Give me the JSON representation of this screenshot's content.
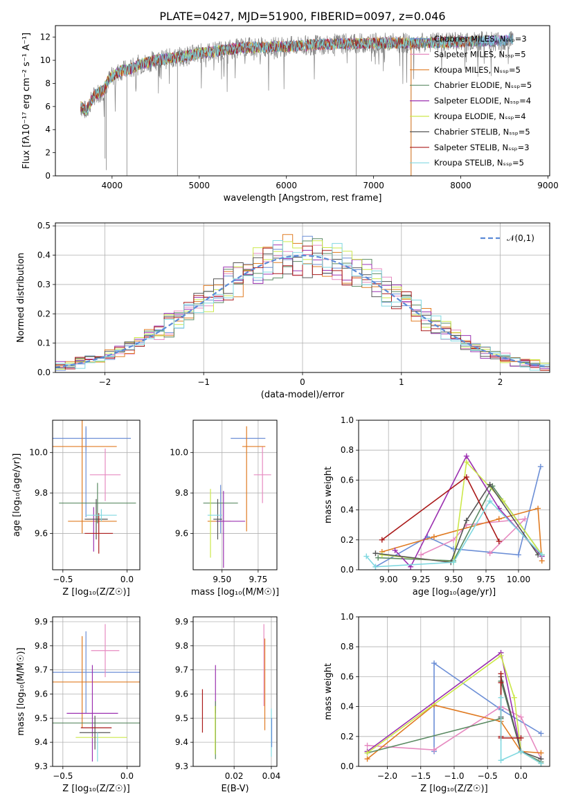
{
  "figure_title": "PLATE=0427, MJD=51900, FIBERID=0097, z=0.046",
  "colors": {
    "Chabrier MILES": "#6b8ed6",
    "Salpeter MILES": "#e68ac0",
    "Kroupa MILES": "#e07b22",
    "Chabrier ELODIE": "#5a8a62",
    "Salpeter ELODIE": "#9b30b0",
    "Kroupa ELODIE": "#cce84a",
    "Chabrier STELIB": "#555555",
    "Salpeter STELIB": "#aa1a1a",
    "Kroupa STELIB": "#80d8e0",
    "data": "#808080",
    "normal": "#5b8ad6"
  },
  "chart_data": [
    {
      "id": "spectrum",
      "type": "line",
      "title": "",
      "xlabel": "wavelength [Angstrom, rest frame]",
      "ylabel": "Flux [fλ10⁻¹⁷ erg cm⁻² s⁻¹ A⁻¹]",
      "xlim": [
        3350,
        9020
      ],
      "ylim": [
        0,
        13
      ],
      "xticks": [
        4000,
        5000,
        6000,
        7000,
        8000,
        9000
      ],
      "yticks": [
        0,
        2,
        4,
        6,
        8,
        10,
        12
      ],
      "legend": [
        "Chabrier MILES, N_SSP=3",
        "Salpeter MILES, N_SSP=5",
        "Kroupa MILES, N_SSP=5",
        "Chabrier ELODIE, N_SSP=5",
        "Salpeter ELODIE, N_SSP=4",
        "Kroupa ELODIE, N_SSP=4",
        "Chabrier STELIB, N_SSP=5",
        "Salpeter STELIB, N_SSP=3",
        "Kroupa STELIB, N_SSP=5"
      ],
      "legend_placement": "upper-right",
      "continuum": [
        [
          3640,
          6.0
        ],
        [
          3700,
          5.6
        ],
        [
          3800,
          7.0
        ],
        [
          3900,
          7.4
        ],
        [
          3950,
          8.2
        ],
        [
          4000,
          8.6
        ],
        [
          4100,
          9.1
        ],
        [
          4200,
          9.2
        ],
        [
          4300,
          9.6
        ],
        [
          4500,
          10.0
        ],
        [
          4800,
          10.3
        ],
        [
          5000,
          10.6
        ],
        [
          5200,
          10.8
        ],
        [
          5500,
          11.1
        ],
        [
          6000,
          11.2
        ],
        [
          6500,
          11.4
        ],
        [
          7000,
          11.5
        ],
        [
          7500,
          11.5
        ],
        [
          8000,
          11.6
        ],
        [
          8500,
          11.7
        ],
        [
          8600,
          11.9
        ]
      ],
      "spikes": [
        [
          3920,
          1.5
        ],
        [
          3935,
          0.5
        ],
        [
          4170,
          0.0
        ],
        [
          4750,
          0.0
        ],
        [
          6800,
          0.0
        ],
        [
          7430,
          0.0
        ]
      ]
    },
    {
      "id": "residuals",
      "type": "histogram",
      "title": "",
      "xlabel": "(data-model)/error",
      "ylabel": "Normed distribution",
      "xlim": [
        -2.5,
        2.5
      ],
      "ylim": [
        0,
        0.51
      ],
      "xticks": [
        -2,
        -1,
        0,
        1,
        2
      ],
      "yticks": [
        0.0,
        0.1,
        0.2,
        0.3,
        0.4,
        0.5
      ],
      "grid": true,
      "bin_width": 0.1,
      "legend": [
        "𝒩(0,1)"
      ],
      "legend_placement": "upper-right"
    },
    {
      "id": "age-vs-Z",
      "type": "errorbar",
      "xlabel": "Z [log₁₀(Z/Z☉)]",
      "ylabel": "age  [log₁₀(age/yr)]",
      "xlim": [
        -0.58,
        0.1
      ],
      "ylim": [
        9.42,
        10.16
      ],
      "xticks": [
        -0.5,
        0.0
      ],
      "yticks": [
        9.6,
        9.8,
        10.0
      ],
      "grid": true,
      "points": [
        {
          "series": "Chabrier MILES",
          "x": -0.32,
          "xerr": 0.35,
          "y": 10.07,
          "yerr": 0.06
        },
        {
          "series": "Chabrier MILES",
          "x": -0.32,
          "xerr": 0.0,
          "y": 9.9,
          "yerr": 0.22
        },
        {
          "series": "Salpeter MILES",
          "x": -0.17,
          "xerr": 0.12,
          "y": 9.89,
          "yerr": 0.13
        },
        {
          "series": "Kroupa MILES",
          "x": -0.35,
          "xerr": 0.27,
          "y": 10.03,
          "yerr": 0.43
        },
        {
          "series": "Kroupa MILES",
          "x": -0.27,
          "xerr": 0.19,
          "y": 9.66,
          "yerr": 0.0
        },
        {
          "series": "Chabrier ELODIE",
          "x": -0.23,
          "xerr": 0.3,
          "y": 9.75,
          "yerr": 0.1
        },
        {
          "series": "Salpeter ELODIE",
          "x": -0.26,
          "xerr": 0.0,
          "y": 9.62,
          "yerr": 0.11
        },
        {
          "series": "Chabrier STELIB",
          "x": -0.24,
          "xerr": 0.09,
          "y": 9.67,
          "yerr": 0.1
        },
        {
          "series": "Salpeter STELIB",
          "x": -0.22,
          "xerr": 0.11,
          "y": 9.6,
          "yerr": 0.1
        },
        {
          "series": "Kroupa STELIB",
          "x": -0.2,
          "xerr": 0.12,
          "y": 9.69,
          "yerr": 0.03
        }
      ]
    },
    {
      "id": "age-vs-mass",
      "type": "errorbar",
      "xlabel": "mass [log₁₀(M/M☉)]",
      "ylabel": "",
      "xlim": [
        9.3,
        9.88
      ],
      "ylim": [
        9.42,
        10.16
      ],
      "xticks": [
        9.5,
        9.75
      ],
      "yticks": [
        9.6,
        9.8,
        10.0
      ],
      "grid": true,
      "points": [
        {
          "series": "Chabrier MILES",
          "x": 9.68,
          "xerr": 0.12,
          "y": 10.07,
          "yerr": 0.0
        },
        {
          "series": "Chabrier MILES",
          "x": 9.49,
          "xerr": 0.0,
          "y": 9.72,
          "yerr": 0.12
        },
        {
          "series": "Salpeter MILES",
          "x": 9.78,
          "xerr": 0.06,
          "y": 9.89,
          "yerr": 0.14
        },
        {
          "series": "Kroupa MILES",
          "x": 9.72,
          "xerr": 0.08,
          "y": 10.03,
          "yerr": 0.0
        },
        {
          "series": "Kroupa MILES",
          "x": 9.67,
          "xerr": 0.0,
          "y": 9.87,
          "yerr": 0.26
        },
        {
          "series": "Kroupa MILES",
          "x": 9.48,
          "xerr": 0.08,
          "y": 9.66,
          "yerr": 0.0
        },
        {
          "series": "Chabrier ELODIE",
          "x": 9.49,
          "xerr": 0.12,
          "y": 9.75,
          "yerr": 0.0
        },
        {
          "series": "Salpeter ELODIE",
          "x": 9.51,
          "xerr": 0.0,
          "y": 9.62,
          "yerr": 0.19
        },
        {
          "series": "Salpeter ELODIE",
          "x": 9.56,
          "xerr": 0.1,
          "y": 9.66,
          "yerr": 0.0
        },
        {
          "series": "Kroupa ELODIE",
          "x": 9.42,
          "xerr": 0.0,
          "y": 9.65,
          "yerr": 0.17
        },
        {
          "series": "Chabrier STELIB",
          "x": 9.47,
          "xerr": 0.03,
          "y": 9.67,
          "yerr": 0.1
        },
        {
          "series": "Kroupa STELIB",
          "x": 9.45,
          "xerr": 0.05,
          "y": 9.69,
          "yerr": 0.0
        }
      ]
    },
    {
      "id": "weight-vs-age",
      "type": "line",
      "xlabel": "age  [log₁₀(age/yr)]",
      "ylabel": "mass weight",
      "xlim": [
        8.77,
        10.24
      ],
      "ylim": [
        0,
        1
      ],
      "xticks": [
        9.0,
        9.25,
        9.5,
        9.75,
        10.0
      ],
      "yticks": [
        0.0,
        0.2,
        0.4,
        0.6,
        0.8,
        1.0
      ],
      "grid": true,
      "series": [
        {
          "series": "Chabrier MILES",
          "x": [
            8.9,
            9.3,
            9.5,
            10.0,
            10.17
          ],
          "y": [
            0.02,
            0.22,
            0.14,
            0.1,
            0.69
          ]
        },
        {
          "series": "Salpeter MILES",
          "x": [
            9.25,
            9.5,
            9.6,
            10.05,
            9.78
          ],
          "y": [
            0.1,
            0.2,
            0.3,
            0.34,
            0.11
          ]
        },
        {
          "series": "Kroupa MILES",
          "x": [
            8.95,
            9.35,
            9.85,
            10.15,
            10.18
          ],
          "y": [
            0.12,
            0.22,
            0.34,
            0.41,
            0.06
          ]
        },
        {
          "series": "Chabrier ELODIE",
          "x": [
            8.92,
            9.5,
            9.8,
            10.18
          ],
          "y": [
            0.08,
            0.06,
            0.56,
            0.1
          ]
        },
        {
          "series": "Salpeter ELODIE",
          "x": [
            9.05,
            9.17,
            9.6,
            9.85,
            10.18
          ],
          "y": [
            0.13,
            0.02,
            0.76,
            0.41,
            0.09
          ]
        },
        {
          "series": "Kroupa ELODIE",
          "x": [
            8.95,
            9.5,
            9.6,
            9.88,
            10.18
          ],
          "y": [
            0.1,
            0.05,
            0.72,
            0.46,
            0.1
          ]
        },
        {
          "series": "Chabrier STELIB",
          "x": [
            8.9,
            9.48,
            9.6,
            9.78,
            10.15
          ],
          "y": [
            0.11,
            0.05,
            0.33,
            0.57,
            0.1
          ]
        },
        {
          "series": "Salpeter STELIB",
          "x": [
            8.95,
            9.6,
            9.85
          ],
          "y": [
            0.2,
            0.62,
            0.19
          ]
        },
        {
          "series": "Kroupa STELIB",
          "x": [
            8.83,
            8.9,
            9.5,
            9.78,
            10.18
          ],
          "y": [
            0.09,
            0.02,
            0.05,
            0.46,
            0.1
          ]
        }
      ]
    },
    {
      "id": "mass-vs-Z",
      "type": "errorbar",
      "xlabel": "Z [log₁₀(Z/Z☉)]",
      "ylabel": "mass [log₁₀(M/M☉)]",
      "xlim": [
        -0.58,
        0.1
      ],
      "ylim": [
        9.3,
        9.92
      ],
      "xticks": [
        -0.5,
        0.0
      ],
      "yticks": [
        9.3,
        9.4,
        9.5,
        9.6,
        9.7,
        9.8,
        9.9
      ],
      "grid": true,
      "points": [
        {
          "series": "Chabrier MILES",
          "x": -0.32,
          "xerr": 0.0,
          "y": 9.69,
          "yerr": 0.17
        },
        {
          "series": "Chabrier MILES",
          "x": -0.2,
          "xerr": 0.42,
          "y": 9.69,
          "yerr": 0.0
        },
        {
          "series": "Salpeter MILES",
          "x": -0.17,
          "xerr": 0.11,
          "y": 9.78,
          "yerr": 0.11
        },
        {
          "series": "Kroupa MILES",
          "x": -0.35,
          "xerr": 0.0,
          "y": 9.65,
          "yerr": 0.19
        },
        {
          "series": "Kroupa MILES",
          "x": -0.25,
          "xerr": 0.35,
          "y": 9.65,
          "yerr": 0.0
        },
        {
          "series": "Chabrier ELODIE",
          "x": -0.24,
          "xerr": 0.4,
          "y": 9.48,
          "yerr": 0.0
        },
        {
          "series": "Salpeter ELODIE",
          "x": -0.27,
          "xerr": 0.0,
          "y": 9.52,
          "yerr": 0.2
        },
        {
          "series": "Salpeter ELODIE",
          "x": -0.27,
          "xerr": 0.2,
          "y": 9.52,
          "yerr": 0.0
        },
        {
          "series": "Kroupa ELODIE",
          "x": -0.2,
          "xerr": 0.2,
          "y": 9.42,
          "yerr": 0.0
        },
        {
          "series": "Chabrier STELIB",
          "x": -0.25,
          "xerr": 0.12,
          "y": 9.44,
          "yerr": 0.07
        },
        {
          "series": "Salpeter STELIB",
          "x": -0.24,
          "xerr": 0.12,
          "y": 9.46,
          "yerr": 0.0
        },
        {
          "series": "Kroupa STELIB",
          "x": -0.23,
          "xerr": 0.0,
          "y": 9.38,
          "yerr": 0.06
        }
      ]
    },
    {
      "id": "mass-vs-EBV",
      "type": "errorbar",
      "xlabel": "E(B-V)",
      "ylabel": "",
      "xlim": [
        -0.002,
        0.043
      ],
      "ylim": [
        9.3,
        9.92
      ],
      "xticks": [
        0.02,
        0.04
      ],
      "yticks": [
        9.3,
        9.4,
        9.5,
        9.6,
        9.7,
        9.8,
        9.9
      ],
      "grid": true,
      "points": [
        {
          "series": "Salpeter STELIB",
          "x": 0.003,
          "xerr": 0.0,
          "y": 9.53,
          "yerr": 0.09
        },
        {
          "series": "Salpeter ELODIE",
          "x": 0.01,
          "xerr": 0.0,
          "y": 9.62,
          "yerr": 0.1
        },
        {
          "series": "Chabrier ELODIE",
          "x": 0.01,
          "xerr": 0.0,
          "y": 9.45,
          "yerr": 0.12
        },
        {
          "series": "Kroupa ELODIE",
          "x": 0.0098,
          "xerr": 0.0,
          "y": 9.45,
          "yerr": 0.1
        },
        {
          "series": "Salpeter MILES",
          "x": 0.036,
          "xerr": 0.0,
          "y": 9.72,
          "yerr": 0.17
        },
        {
          "series": "Kroupa MILES",
          "x": 0.0365,
          "xerr": 0.0,
          "y": 9.64,
          "yerr": 0.19
        },
        {
          "series": "Kroupa STELIB",
          "x": 0.04,
          "xerr": 0.0,
          "y": 9.44,
          "yerr": 0.1
        },
        {
          "series": "Chabrier MILES",
          "x": 0.0402,
          "xerr": 0.0,
          "y": 9.44,
          "yerr": 0.06
        }
      ]
    },
    {
      "id": "weight-vs-Z",
      "type": "line",
      "xlabel": "Z [log₁₀(Z/Z☉)]",
      "ylabel": "mass weight",
      "xlim": [
        -2.43,
        0.43
      ],
      "ylim": [
        0,
        1
      ],
      "xticks": [
        -2.0,
        -1.5,
        -1.0,
        -0.5,
        0.0
      ],
      "yticks": [
        0.0,
        0.2,
        0.4,
        0.6,
        0.8,
        1.0
      ],
      "grid": true,
      "series": [
        {
          "series": "Chabrier MILES",
          "x": [
            -1.3,
            -1.3,
            -0.3,
            0.3
          ],
          "y": [
            0.1,
            0.69,
            0.38,
            0.22
          ]
        },
        {
          "series": "Salpeter MILES",
          "x": [
            -2.3,
            -1.3,
            -0.3,
            0.0,
            0.3
          ],
          "y": [
            0.14,
            0.11,
            0.4,
            0.33,
            0.05
          ]
        },
        {
          "series": "Kroupa MILES",
          "x": [
            -2.3,
            -1.3,
            -0.3,
            0.0,
            0.3
          ],
          "y": [
            0.05,
            0.41,
            0.3,
            0.1,
            0.09
          ]
        },
        {
          "series": "Chabrier ELODIE",
          "x": [
            -2.3,
            -0.3,
            -0.3,
            0.0,
            0.3
          ],
          "y": [
            0.09,
            0.32,
            0.57,
            0.1,
            0.03
          ]
        },
        {
          "series": "Salpeter ELODIE",
          "x": [
            -2.3,
            -0.3,
            0.0,
            0.3
          ],
          "y": [
            0.1,
            0.76,
            0.1,
            0.02
          ]
        },
        {
          "series": "Kroupa ELODIE",
          "x": [
            -2.3,
            -0.3,
            -0.1,
            0.0,
            0.3
          ],
          "y": [
            0.09,
            0.74,
            0.46,
            0.1,
            0.02
          ]
        },
        {
          "series": "Chabrier STELIB",
          "x": [
            -0.3,
            -0.3,
            0.0,
            0.3
          ],
          "y": [
            0.33,
            0.6,
            0.1,
            0.05
          ]
        },
        {
          "series": "Salpeter STELIB",
          "x": [
            -0.3,
            -0.3,
            -0.3,
            -0.3,
            0.0
          ],
          "y": [
            0.62,
            0.56,
            0.2,
            0.19,
            0.19
          ]
        },
        {
          "series": "Kroupa STELIB",
          "x": [
            -0.3,
            -0.3,
            0.0,
            0.3
          ],
          "y": [
            0.46,
            0.04,
            0.1,
            0.02
          ]
        }
      ]
    }
  ]
}
